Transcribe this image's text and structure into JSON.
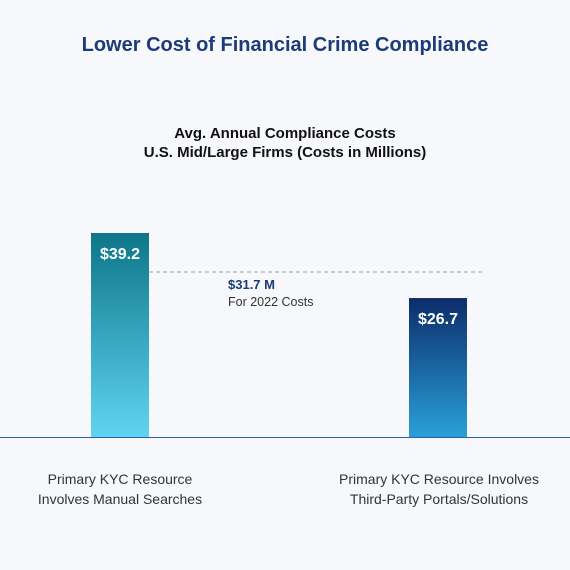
{
  "page_title": "Lower Cost of Financial Crime Compliance",
  "chart_data": {
    "type": "bar",
    "title_line1": "Avg. Annual Compliance Costs",
    "title_line2": "U.S. Mid/Large Firms (Costs in Millions)",
    "categories": [
      [
        "Primary KYC Resource",
        "Involves Manual Searches"
      ],
      [
        "Primary KYC Resource Involves",
        "Third-Party Portals/Solutions"
      ]
    ],
    "values": [
      39.2,
      26.7
    ],
    "data_labels": [
      "$39.2",
      "$26.7"
    ],
    "reference_line": {
      "value": 31.7,
      "label": "$31.7 M",
      "sublabel": "For 2022 Costs"
    },
    "ylim": [
      0,
      39.2
    ],
    "grid": false,
    "colors": {
      "bar1_top": "#0d7688",
      "bar1_bottom": "#5fd4f2",
      "bar2_top": "#0c2c6b",
      "bar2_bottom": "#2aa0d8",
      "reference": "#9aa4b0",
      "reference_label": "#1c3b78",
      "axis": "#2a5ea8"
    }
  }
}
